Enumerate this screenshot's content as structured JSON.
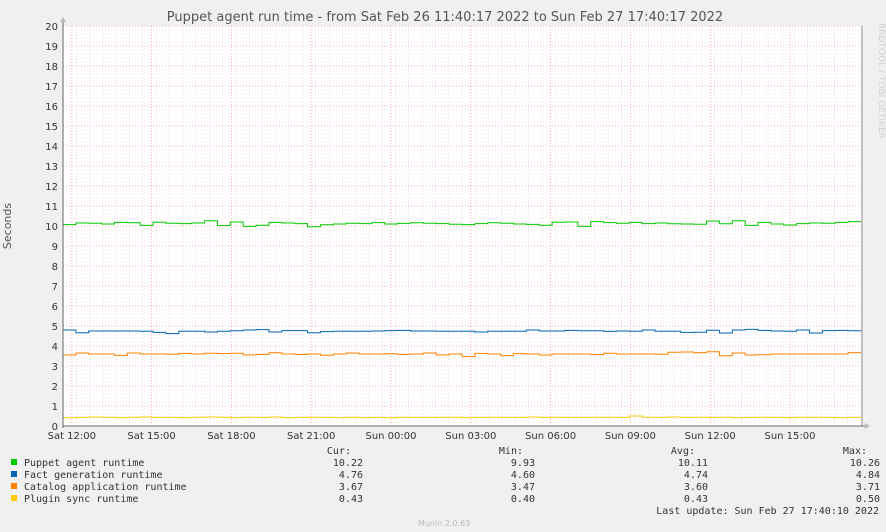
{
  "chart_data": {
    "type": "line",
    "title": "Puppet agent run time - from Sat Feb 26 11:40:17 2022 to Sun Feb 27 17:40:17 2022",
    "ylabel": "Seconds",
    "side_label": "RRDTOOL / TOBI OETIKER",
    "ylim": [
      0,
      20
    ],
    "yticks": [
      0,
      1,
      2,
      3,
      4,
      5,
      6,
      7,
      8,
      9,
      10,
      11,
      12,
      13,
      14,
      15,
      16,
      17,
      18,
      19,
      20
    ],
    "xlim_hours": [
      0,
      30
    ],
    "xticks": [
      {
        "hour": 0.33,
        "label": "Sat 12:00"
      },
      {
        "hour": 3.33,
        "label": "Sat 15:00"
      },
      {
        "hour": 6.33,
        "label": "Sat 18:00"
      },
      {
        "hour": 9.33,
        "label": "Sat 21:00"
      },
      {
        "hour": 12.33,
        "label": "Sun 00:00"
      },
      {
        "hour": 15.33,
        "label": "Sun 03:00"
      },
      {
        "hour": 18.33,
        "label": "Sun 06:00"
      },
      {
        "hour": 21.33,
        "label": "Sun 09:00"
      },
      {
        "hour": 24.33,
        "label": "Sun 12:00"
      },
      {
        "hour": 27.33,
        "label": "Sun 15:00"
      }
    ],
    "grid": true,
    "legend_headers": {
      "cur": "Cur:",
      "min": "Min:",
      "avg": "Avg:",
      "max": "Max:"
    },
    "series": [
      {
        "name": "Puppet agent runtime",
        "color": "#00cc00",
        "cur": "10.22",
        "min": "9.93",
        "avg": "10.11",
        "max": "10.26",
        "values": [
          10.07,
          10.15,
          10.14,
          10.1,
          10.18,
          10.16,
          10.03,
          10.19,
          10.14,
          10.12,
          10.15,
          10.26,
          10.02,
          10.2,
          9.98,
          10.04,
          10.18,
          10.15,
          10.12,
          9.96,
          10.06,
          10.1,
          10.14,
          10.12,
          10.17,
          10.1,
          10.13,
          10.16,
          10.14,
          10.12,
          10.09,
          10.07,
          10.12,
          10.16,
          10.14,
          10.1,
          10.08,
          10.04,
          10.19,
          10.2,
          9.98,
          10.22,
          10.17,
          10.14,
          10.18,
          10.12,
          10.15,
          10.11,
          10.1,
          10.09,
          10.25,
          10.11,
          10.26,
          10.03,
          10.18,
          10.1,
          10.05,
          10.12,
          10.15,
          10.14,
          10.18,
          10.22
        ]
      },
      {
        "name": "Fact generation runtime",
        "color": "#0066b3",
        "cur": "4.76",
        "min": "4.60",
        "avg": "4.74",
        "max": "4.84",
        "values": [
          4.8,
          4.66,
          4.75,
          4.75,
          4.75,
          4.75,
          4.74,
          4.68,
          4.62,
          4.74,
          4.74,
          4.7,
          4.74,
          4.76,
          4.8,
          4.82,
          4.7,
          4.77,
          4.77,
          4.66,
          4.72,
          4.74,
          4.74,
          4.74,
          4.75,
          4.77,
          4.78,
          4.75,
          4.75,
          4.74,
          4.74,
          4.74,
          4.7,
          4.74,
          4.74,
          4.74,
          4.8,
          4.75,
          4.75,
          4.78,
          4.76,
          4.76,
          4.73,
          4.75,
          4.74,
          4.8,
          4.74,
          4.74,
          4.68,
          4.69,
          4.79,
          4.65,
          4.8,
          4.83,
          4.78,
          4.75,
          4.74,
          4.8,
          4.65,
          4.77,
          4.78,
          4.76
        ]
      },
      {
        "name": "Catalog application runtime",
        "color": "#ff8000",
        "cur": "3.67",
        "min": "3.47",
        "avg": "3.60",
        "max": "3.71",
        "values": [
          3.55,
          3.65,
          3.6,
          3.6,
          3.53,
          3.65,
          3.6,
          3.6,
          3.59,
          3.63,
          3.6,
          3.64,
          3.62,
          3.64,
          3.55,
          3.58,
          3.66,
          3.6,
          3.58,
          3.6,
          3.54,
          3.6,
          3.65,
          3.6,
          3.6,
          3.61,
          3.58,
          3.6,
          3.65,
          3.55,
          3.6,
          3.47,
          3.63,
          3.6,
          3.52,
          3.62,
          3.6,
          3.55,
          3.6,
          3.6,
          3.6,
          3.57,
          3.64,
          3.6,
          3.6,
          3.6,
          3.59,
          3.69,
          3.7,
          3.67,
          3.71,
          3.51,
          3.65,
          3.55,
          3.56,
          3.6,
          3.6,
          3.6,
          3.6,
          3.6,
          3.6,
          3.67
        ]
      },
      {
        "name": "Plugin sync runtime",
        "color": "#ffcc00",
        "cur": "0.43",
        "min": "0.40",
        "avg": "0.43",
        "max": "0.50",
        "values": [
          0.41,
          0.43,
          0.45,
          0.44,
          0.42,
          0.44,
          0.45,
          0.43,
          0.43,
          0.42,
          0.44,
          0.45,
          0.44,
          0.42,
          0.44,
          0.43,
          0.45,
          0.41,
          0.43,
          0.44,
          0.43,
          0.42,
          0.44,
          0.42,
          0.43,
          0.41,
          0.44,
          0.43,
          0.43,
          0.44,
          0.44,
          0.42,
          0.43,
          0.44,
          0.43,
          0.43,
          0.45,
          0.43,
          0.44,
          0.43,
          0.43,
          0.44,
          0.44,
          0.43,
          0.5,
          0.44,
          0.43,
          0.45,
          0.43,
          0.44,
          0.43,
          0.44,
          0.42,
          0.43,
          0.44,
          0.43,
          0.42,
          0.44,
          0.44,
          0.43,
          0.42,
          0.43
        ]
      }
    ]
  },
  "footer": {
    "last_update": "Last update: Sun Feb 27 17:40:10 2022",
    "version": "Munin 2.0.63"
  }
}
